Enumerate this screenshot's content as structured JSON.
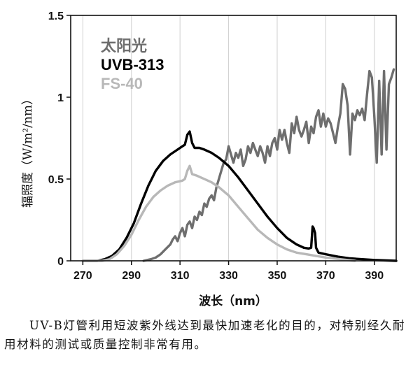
{
  "chart_data": {
    "type": "line",
    "xlabel": "波长（nm）",
    "ylabel": "辐照度（W/m²/nm）",
    "xlim": [
      265,
      399
    ],
    "ylim": [
      0,
      1.5
    ],
    "x_ticks": [
      "270",
      "290",
      "310",
      "330",
      "350",
      "370",
      "390"
    ],
    "y_ticks": [
      "0",
      "0.5",
      "1",
      "1.5"
    ],
    "grid": "vertical",
    "legend_position": "top-left",
    "series": [
      {
        "name": "太阳光",
        "color": "#6e6e6e",
        "points": [
          [
            295,
            0.0
          ],
          [
            298,
            0.01
          ],
          [
            300,
            0.02
          ],
          [
            302,
            0.04
          ],
          [
            304,
            0.07
          ],
          [
            306,
            0.1
          ],
          [
            307,
            0.13
          ],
          [
            308,
            0.15
          ],
          [
            309,
            0.12
          ],
          [
            310,
            0.17
          ],
          [
            311,
            0.2
          ],
          [
            312,
            0.15
          ],
          [
            313,
            0.22
          ],
          [
            314,
            0.24
          ],
          [
            315,
            0.2
          ],
          [
            316,
            0.27
          ],
          [
            317,
            0.25
          ],
          [
            318,
            0.3
          ],
          [
            319,
            0.28
          ],
          [
            320,
            0.35
          ],
          [
            321,
            0.33
          ],
          [
            322,
            0.38
          ],
          [
            323,
            0.4
          ],
          [
            324,
            0.37
          ],
          [
            325,
            0.45
          ],
          [
            326,
            0.5
          ],
          [
            327,
            0.55
          ],
          [
            328,
            0.6
          ],
          [
            329,
            0.62
          ],
          [
            330,
            0.7
          ],
          [
            331,
            0.65
          ],
          [
            332,
            0.6
          ],
          [
            333,
            0.66
          ],
          [
            334,
            0.63
          ],
          [
            335,
            0.68
          ],
          [
            336,
            0.58
          ],
          [
            337,
            0.62
          ],
          [
            338,
            0.7
          ],
          [
            339,
            0.66
          ],
          [
            340,
            0.72
          ],
          [
            341,
            0.68
          ],
          [
            342,
            0.64
          ],
          [
            343,
            0.7
          ],
          [
            344,
            0.66
          ],
          [
            345,
            0.6
          ],
          [
            346,
            0.7
          ],
          [
            347,
            0.64
          ],
          [
            348,
            0.72
          ],
          [
            349,
            0.75
          ],
          [
            350,
            0.68
          ],
          [
            351,
            0.8
          ],
          [
            352,
            0.74
          ],
          [
            353,
            0.8
          ],
          [
            354,
            0.72
          ],
          [
            355,
            0.66
          ],
          [
            356,
            0.84
          ],
          [
            357,
            0.78
          ],
          [
            358,
            0.88
          ],
          [
            359,
            0.8
          ],
          [
            360,
            0.76
          ],
          [
            361,
            0.8
          ],
          [
            362,
            0.85
          ],
          [
            363,
            0.72
          ],
          [
            364,
            0.82
          ],
          [
            365,
            0.78
          ],
          [
            366,
            0.88
          ],
          [
            367,
            0.92
          ],
          [
            368,
            0.82
          ],
          [
            369,
            0.9
          ],
          [
            370,
            0.82
          ],
          [
            371,
            0.87
          ],
          [
            372,
            0.84
          ],
          [
            373,
            0.78
          ],
          [
            374,
            0.72
          ],
          [
            375,
            0.82
          ],
          [
            376,
            0.9
          ],
          [
            377,
            1.08
          ],
          [
            378,
            1.05
          ],
          [
            379,
            0.95
          ],
          [
            380,
            0.65
          ],
          [
            381,
            0.9
          ],
          [
            382,
            0.86
          ],
          [
            383,
            0.92
          ],
          [
            384,
            0.89
          ],
          [
            385,
            0.93
          ],
          [
            386,
            0.86
          ],
          [
            387,
            1.02
          ],
          [
            388,
            1.16
          ],
          [
            389,
            1.12
          ],
          [
            390,
            0.88
          ],
          [
            391,
            0.6
          ],
          [
            392,
            1.1
          ],
          [
            393,
            0.65
          ],
          [
            394,
            1.16
          ],
          [
            395,
            0.68
          ],
          [
            396,
            1.08
          ],
          [
            397,
            1.12
          ],
          [
            398,
            1.17
          ]
        ]
      },
      {
        "name": "UVB-313",
        "color": "#000000",
        "points": [
          [
            270,
            0.0
          ],
          [
            276,
            0.0
          ],
          [
            279,
            0.01
          ],
          [
            282,
            0.03
          ],
          [
            285,
            0.07
          ],
          [
            288,
            0.14
          ],
          [
            291,
            0.23
          ],
          [
            294,
            0.35
          ],
          [
            297,
            0.46
          ],
          [
            300,
            0.55
          ],
          [
            303,
            0.61
          ],
          [
            306,
            0.65
          ],
          [
            309,
            0.68
          ],
          [
            311,
            0.7
          ],
          [
            312,
            0.71
          ],
          [
            313,
            0.77
          ],
          [
            314,
            0.79
          ],
          [
            315,
            0.72
          ],
          [
            316,
            0.69
          ],
          [
            318,
            0.69
          ],
          [
            320,
            0.68
          ],
          [
            323,
            0.66
          ],
          [
            326,
            0.63
          ],
          [
            330,
            0.58
          ],
          [
            334,
            0.51
          ],
          [
            338,
            0.43
          ],
          [
            342,
            0.35
          ],
          [
            346,
            0.27
          ],
          [
            350,
            0.2
          ],
          [
            354,
            0.14
          ],
          [
            358,
            0.1
          ],
          [
            361,
            0.08
          ],
          [
            363,
            0.075
          ],
          [
            364,
            0.08
          ],
          [
            364.6,
            0.21
          ],
          [
            365,
            0.2
          ],
          [
            365.6,
            0.17
          ],
          [
            366,
            0.08
          ],
          [
            367,
            0.05
          ],
          [
            370,
            0.04
          ],
          [
            375,
            0.025
          ],
          [
            380,
            0.015
          ],
          [
            385,
            0.01
          ],
          [
            390,
            0.005
          ],
          [
            399,
            0.0
          ]
        ]
      },
      {
        "name": "FS-40",
        "color": "#b8b8b8",
        "points": [
          [
            270,
            0.0
          ],
          [
            278,
            0.0
          ],
          [
            281,
            0.01
          ],
          [
            284,
            0.04
          ],
          [
            287,
            0.09
          ],
          [
            290,
            0.16
          ],
          [
            293,
            0.25
          ],
          [
            296,
            0.33
          ],
          [
            299,
            0.39
          ],
          [
            302,
            0.43
          ],
          [
            305,
            0.46
          ],
          [
            308,
            0.48
          ],
          [
            311,
            0.49
          ],
          [
            312,
            0.5
          ],
          [
            313,
            0.55
          ],
          [
            314,
            0.58
          ],
          [
            315,
            0.53
          ],
          [
            317,
            0.52
          ],
          [
            320,
            0.5
          ],
          [
            323,
            0.48
          ],
          [
            326,
            0.45
          ],
          [
            330,
            0.4
          ],
          [
            334,
            0.33
          ],
          [
            338,
            0.26
          ],
          [
            342,
            0.19
          ],
          [
            346,
            0.14
          ],
          [
            350,
            0.1
          ],
          [
            354,
            0.07
          ],
          [
            358,
            0.05
          ],
          [
            362,
            0.04
          ],
          [
            366,
            0.03
          ],
          [
            370,
            0.02
          ],
          [
            376,
            0.01
          ],
          [
            382,
            0.0
          ]
        ]
      }
    ]
  },
  "caption": "UV-B灯管利用短波紫外线达到最快加速老化的目的，对特别经久耐用材料的测试或质量控制非常有用。"
}
